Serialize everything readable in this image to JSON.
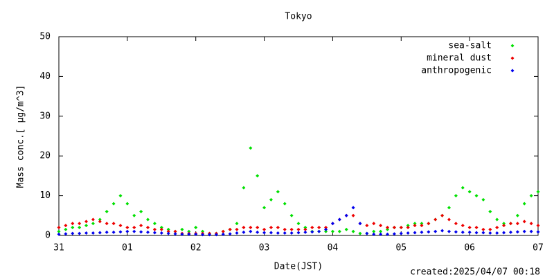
{
  "chart_data": {
    "type": "scatter",
    "title": "Tokyo",
    "x_label": "Date(JST)",
    "y_label": "Mass conc.[ μg/m^3]",
    "annotation": "created:2025/04/07 00:18",
    "xlim": [
      0,
      7
    ],
    "ylim": [
      0,
      50
    ],
    "xticks": [
      {
        "value": 0,
        "label": "31"
      },
      {
        "value": 1,
        "label": "01"
      },
      {
        "value": 2,
        "label": "02"
      },
      {
        "value": 3,
        "label": "03"
      },
      {
        "value": 4,
        "label": "04"
      },
      {
        "value": 5,
        "label": "05"
      },
      {
        "value": 6,
        "label": "06"
      },
      {
        "value": 7,
        "label": "07"
      }
    ],
    "yticks": [
      0,
      10,
      20,
      30,
      40,
      50
    ],
    "legend": "top right",
    "x": [
      0,
      0.1,
      0.2,
      0.3,
      0.4,
      0.5,
      0.6,
      0.7,
      0.8,
      0.9,
      1,
      1.1,
      1.2,
      1.3,
      1.4,
      1.5,
      1.6,
      1.7,
      1.8,
      1.9,
      2,
      2.1,
      2.2,
      2.3,
      2.4,
      2.5,
      2.6,
      2.7,
      2.8,
      2.9,
      3,
      3.1,
      3.2,
      3.3,
      3.4,
      3.5,
      3.6,
      3.7,
      3.8,
      3.9,
      4,
      4.1,
      4.2,
      4.3,
      4.4,
      4.5,
      4.6,
      4.7,
      4.8,
      4.9,
      5,
      5.1,
      5.2,
      5.3,
      5.4,
      5.5,
      5.6,
      5.7,
      5.8,
      5.9,
      6,
      6.1,
      6.2,
      6.3,
      6.4,
      6.5,
      6.6,
      6.7,
      6.8,
      6.9,
      7
    ],
    "series": [
      {
        "name": "sea-salt",
        "color": "#00e000",
        "values": [
          1,
          1.5,
          2,
          2,
          2.5,
          3,
          4,
          6,
          8,
          10,
          8,
          5,
          6,
          4,
          3,
          2,
          1.5,
          1,
          1.5,
          1,
          2,
          1,
          0.5,
          0.5,
          1,
          1.5,
          3,
          12,
          22,
          15,
          7,
          9,
          11,
          8,
          5,
          3,
          2,
          1,
          1,
          1,
          1,
          1,
          1.5,
          1,
          0.5,
          0.5,
          1,
          1,
          1.5,
          2,
          2,
          2.5,
          3,
          3,
          3,
          4,
          5,
          7,
          10,
          12,
          11,
          10,
          9,
          6,
          4,
          3,
          3,
          5,
          8,
          10,
          11
        ]
      },
      {
        "name": "mineral dust",
        "color": "#ee0000",
        "values": [
          2,
          2.5,
          3,
          3,
          3.5,
          4,
          3.5,
          3,
          3,
          2.5,
          2,
          2,
          2.5,
          2,
          1.5,
          1.5,
          1,
          1,
          0.5,
          0.5,
          0.5,
          0.5,
          0.5,
          0.5,
          1,
          1.5,
          1.5,
          2,
          2,
          2,
          1.5,
          2,
          2,
          1.5,
          1.5,
          1.5,
          1.5,
          2,
          2,
          2,
          3,
          4,
          5,
          5,
          3,
          2.5,
          3,
          2.5,
          2,
          2,
          2,
          2,
          2.5,
          2.5,
          3,
          4,
          5,
          4,
          3,
          2.5,
          2,
          2,
          1.5,
          1.5,
          2,
          2.5,
          3,
          3,
          3.5,
          3,
          2.5
        ]
      },
      {
        "name": "anthropogenic",
        "color": "#0000ee",
        "values": [
          0.3,
          0.4,
          0.5,
          0.5,
          0.6,
          0.6,
          0.7,
          0.8,
          0.8,
          0.9,
          1,
          1,
          0.9,
          0.8,
          0.7,
          0.6,
          0.5,
          0.4,
          0.3,
          0.3,
          0.3,
          0.2,
          0.2,
          0.2,
          0.3,
          0.4,
          0.6,
          0.8,
          1,
          0.8,
          0.7,
          0.7,
          0.6,
          0.6,
          0.6,
          0.7,
          0.8,
          0.9,
          1,
          1.5,
          3,
          4,
          5,
          7,
          3,
          0.5,
          0.3,
          0.3,
          0.3,
          0.4,
          0.5,
          0.6,
          0.7,
          0.8,
          0.9,
          1,
          1.2,
          1,
          0.9,
          0.8,
          0.8,
          0.7,
          0.7,
          0.6,
          0.6,
          0.7,
          0.8,
          0.9,
          1,
          1,
          0.9
        ]
      }
    ]
  }
}
